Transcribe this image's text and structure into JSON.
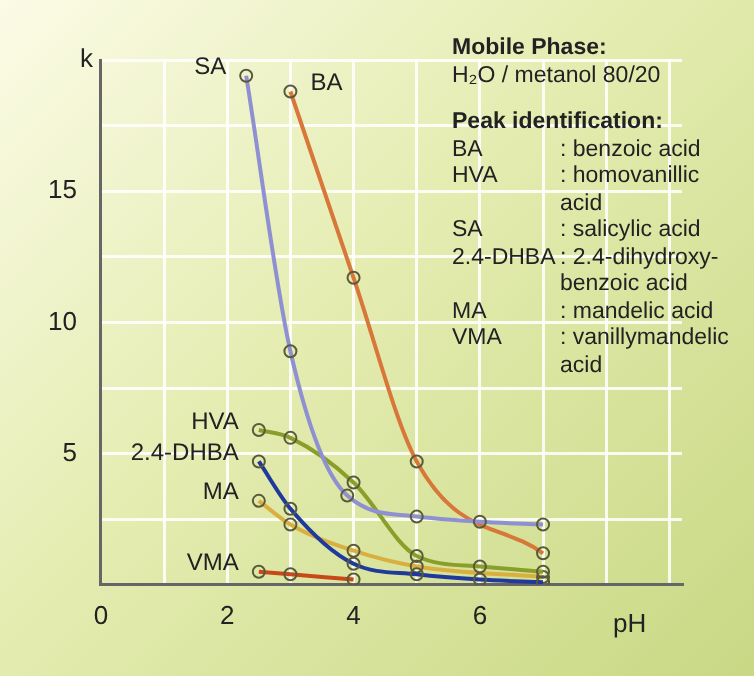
{
  "chart_data": {
    "type": "line",
    "title": "Mobile Phase:",
    "subtitle": "H₂O / metanol 80/20",
    "xlabel": "pH",
    "ylabel": "k",
    "annotations": [
      "Peak identification:",
      "BA : benzoic acid",
      "HVA : homovanillic acid",
      "SA : salicylic acid",
      "2.4-DHBA : 2.4-dihydroxy-benzoic acid",
      "MA : mandelic acid",
      "VMA : vanillymandelic acid"
    ],
    "series": [
      {
        "name": "SA",
        "color": "#8f90d2",
        "x": [
          2.3,
          3,
          3.9,
          5,
          6,
          7
        ],
        "values": [
          19.4,
          8.9,
          3.4,
          2.6,
          2.4,
          2.3
        ]
      },
      {
        "name": "BA",
        "color": "#d8773a",
        "x": [
          3,
          4,
          5,
          7
        ],
        "values": [
          18.8,
          11.7,
          4.7,
          1.2
        ]
      },
      {
        "name": "HVA",
        "color": "#8a9f2a",
        "x": [
          2.5,
          3,
          4,
          5,
          6,
          7
        ],
        "values": [
          5.9,
          5.6,
          3.9,
          1.1,
          0.7,
          0.5
        ]
      },
      {
        "name": "2.4-DHBA",
        "color": "#1f3a9c",
        "x": [
          2.5,
          3,
          4,
          5,
          6,
          7
        ],
        "values": [
          4.7,
          2.9,
          0.8,
          0.4,
          0.2,
          0.1
        ]
      },
      {
        "name": "MA",
        "color": "#d9b040",
        "x": [
          2.5,
          3,
          4,
          5,
          7
        ],
        "values": [
          3.2,
          2.3,
          1.3,
          0.7,
          0.3
        ]
      },
      {
        "name": "VMA",
        "color": "#c8481a",
        "x": [
          2.5,
          3,
          4
        ],
        "values": [
          0.5,
          0.4,
          0.2
        ]
      }
    ],
    "xlim": [
      0,
      9.2
    ],
    "xticks": [
      0,
      {
        "value": 1,
        "label": null
      },
      2,
      {
        "value": 3,
        "label": null
      },
      4,
      {
        "value": 5,
        "label": null
      },
      6,
      {
        "value": 7,
        "label": null
      },
      {
        "value": 8,
        "label": null
      },
      {
        "value": 9,
        "label": null
      }
    ],
    "ylim": [
      0,
      20
    ],
    "yticks": [
      {
        "value": 2.5,
        "label": null
      },
      5,
      {
        "value": 7.5,
        "label": null
      },
      10,
      {
        "value": 12.5,
        "label": null
      },
      15,
      {
        "value": 17.5,
        "label": null
      },
      {
        "value": 20,
        "label": null
      }
    ],
    "grid": true,
    "marker": "circle",
    "line_style": "solid"
  }
}
